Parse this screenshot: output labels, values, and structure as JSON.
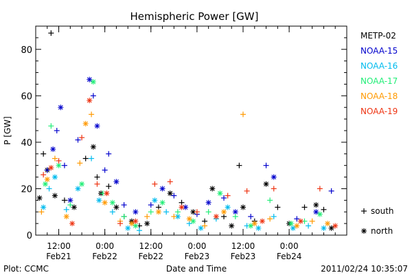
{
  "chart_data": {
    "type": "scatter",
    "title": "Hemispheric Power [GW]",
    "ylabel": "P [GW]",
    "xlabel": "Date and Time",
    "ylim": [
      0,
      90
    ],
    "yticks": [
      0,
      20,
      40,
      60,
      80
    ],
    "xlim": [
      "2011-02-21 06:00",
      "2011-02-24 15:00"
    ],
    "xticks": [
      {
        "time": "2011-02-21 12:00",
        "label1": "12:00",
        "label2": "Feb21"
      },
      {
        "time": "2011-02-22 00:00",
        "label1": "0:00",
        "label2": "Feb22"
      },
      {
        "time": "2011-02-22 12:00",
        "label1": "12:00",
        "label2": "Feb22"
      },
      {
        "time": "2011-02-23 00:00",
        "label1": "0:00",
        "label2": "Feb23"
      },
      {
        "time": "2011-02-23 12:00",
        "label1": "12:00",
        "label2": "Feb23"
      },
      {
        "time": "2011-02-24 00:00",
        "label1": "0:00",
        "label2": "Feb24"
      }
    ],
    "legend_placement": "right",
    "series": [
      {
        "name": "METP-02",
        "color": "#000000",
        "points": [
          {
            "t": "2011-02-21 07:00",
            "y": 16,
            "m": "north"
          },
          {
            "t": "2011-02-21 08:00",
            "y": 35,
            "m": "south"
          },
          {
            "t": "2011-02-21 09:00",
            "y": 28,
            "m": "north"
          },
          {
            "t": "2011-02-21 10:00",
            "y": 87,
            "m": "south"
          },
          {
            "t": "2011-02-21 11:00",
            "y": 17,
            "m": "north"
          },
          {
            "t": "2011-02-21 13:30",
            "y": 15,
            "m": "south"
          },
          {
            "t": "2011-02-21 16:00",
            "y": 12,
            "m": "north"
          },
          {
            "t": "2011-02-21 19:00",
            "y": 33,
            "m": "south"
          },
          {
            "t": "2011-02-21 21:00",
            "y": 38,
            "m": "north"
          },
          {
            "t": "2011-02-21 22:00",
            "y": 25,
            "m": "south"
          },
          {
            "t": "2011-02-21 23:00",
            "y": 18,
            "m": "north"
          },
          {
            "t": "2011-02-22 01:00",
            "y": 21,
            "m": "south"
          },
          {
            "t": "2011-02-22 03:00",
            "y": 12,
            "m": "north"
          },
          {
            "t": "2011-02-22 05:00",
            "y": 8,
            "m": "south"
          },
          {
            "t": "2011-02-22 07:00",
            "y": 6,
            "m": "north"
          },
          {
            "t": "2011-02-22 09:00",
            "y": 4,
            "m": "south"
          },
          {
            "t": "2011-02-22 11:00",
            "y": 5,
            "m": "north"
          },
          {
            "t": "2011-02-22 14:00",
            "y": 12,
            "m": "south"
          },
          {
            "t": "2011-02-22 17:00",
            "y": 18,
            "m": "north"
          },
          {
            "t": "2011-02-22 20:00",
            "y": 14,
            "m": "south"
          },
          {
            "t": "2011-02-22 23:00",
            "y": 10,
            "m": "north"
          },
          {
            "t": "2011-02-23 02:00",
            "y": 6,
            "m": "south"
          },
          {
            "t": "2011-02-23 04:00",
            "y": 20,
            "m": "north"
          },
          {
            "t": "2011-02-23 07:00",
            "y": 8,
            "m": "south"
          },
          {
            "t": "2011-02-23 09:00",
            "y": 4,
            "m": "north"
          },
          {
            "t": "2011-02-23 11:00",
            "y": 30,
            "m": "south"
          },
          {
            "t": "2011-02-23 12:00",
            "y": 12,
            "m": "north"
          },
          {
            "t": "2011-02-23 15:00",
            "y": 6,
            "m": "south"
          },
          {
            "t": "2011-02-23 18:00",
            "y": 22,
            "m": "north"
          },
          {
            "t": "2011-02-23 21:00",
            "y": 12,
            "m": "south"
          },
          {
            "t": "2011-02-24 00:00",
            "y": 5,
            "m": "north"
          },
          {
            "t": "2011-02-24 04:00",
            "y": 12,
            "m": "south"
          },
          {
            "t": "2011-02-24 07:00",
            "y": 13,
            "m": "north"
          },
          {
            "t": "2011-02-24 09:00",
            "y": 11,
            "m": "south"
          },
          {
            "t": "2011-02-24 11:00",
            "y": 3,
            "m": "north"
          }
        ]
      },
      {
        "name": "NOAA-15",
        "color": "#0000cc",
        "points": [
          {
            "t": "2011-02-21 09:00",
            "y": 28,
            "m": "south"
          },
          {
            "t": "2011-02-21 10:30",
            "y": 37,
            "m": "north"
          },
          {
            "t": "2011-02-21 11:30",
            "y": 45,
            "m": "south"
          },
          {
            "t": "2011-02-21 12:30",
            "y": 55,
            "m": "north"
          },
          {
            "t": "2011-02-21 13:30",
            "y": 30,
            "m": "south"
          },
          {
            "t": "2011-02-21 15:00",
            "y": 15,
            "m": "north"
          },
          {
            "t": "2011-02-21 17:00",
            "y": 41,
            "m": "south"
          },
          {
            "t": "2011-02-21 20:00",
            "y": 67,
            "m": "north"
          },
          {
            "t": "2011-02-21 21:00",
            "y": 60,
            "m": "south"
          },
          {
            "t": "2011-02-21 22:00",
            "y": 47,
            "m": "north"
          },
          {
            "t": "2011-02-22 00:00",
            "y": 28,
            "m": "south"
          },
          {
            "t": "2011-02-22 01:00",
            "y": 35,
            "m": "south"
          },
          {
            "t": "2011-02-22 03:00",
            "y": 23,
            "m": "north"
          },
          {
            "t": "2011-02-22 05:00",
            "y": 13,
            "m": "south"
          },
          {
            "t": "2011-02-22 08:00",
            "y": 10,
            "m": "north"
          },
          {
            "t": "2011-02-22 12:00",
            "y": 13,
            "m": "south"
          },
          {
            "t": "2011-02-22 15:00",
            "y": 20,
            "m": "north"
          },
          {
            "t": "2011-02-22 18:00",
            "y": 17,
            "m": "south"
          },
          {
            "t": "2011-02-22 21:00",
            "y": 12,
            "m": "north"
          },
          {
            "t": "2011-02-23 00:00",
            "y": 9,
            "m": "south"
          },
          {
            "t": "2011-02-23 03:00",
            "y": 14,
            "m": "north"
          },
          {
            "t": "2011-02-23 07:00",
            "y": 16,
            "m": "south"
          },
          {
            "t": "2011-02-23 10:00",
            "y": 10,
            "m": "north"
          },
          {
            "t": "2011-02-23 14:00",
            "y": 8,
            "m": "south"
          },
          {
            "t": "2011-02-23 18:00",
            "y": 30,
            "m": "south"
          },
          {
            "t": "2011-02-23 20:00",
            "y": 25,
            "m": "north"
          },
          {
            "t": "2011-02-24 02:00",
            "y": 7,
            "m": "south"
          },
          {
            "t": "2011-02-24 07:00",
            "y": 10,
            "m": "north"
          },
          {
            "t": "2011-02-24 11:00",
            "y": 19,
            "m": "south"
          }
        ]
      },
      {
        "name": "NOAA-16",
        "color": "#00bbee",
        "points": [
          {
            "t": "2011-02-21 08:00",
            "y": 12,
            "m": "north"
          },
          {
            "t": "2011-02-21 09:30",
            "y": 20,
            "m": "south"
          },
          {
            "t": "2011-02-21 11:00",
            "y": 25,
            "m": "north"
          },
          {
            "t": "2011-02-21 14:00",
            "y": 11,
            "m": "south"
          },
          {
            "t": "2011-02-21 17:00",
            "y": 20,
            "m": "north"
          },
          {
            "t": "2011-02-21 20:30",
            "y": 33,
            "m": "south"
          },
          {
            "t": "2011-02-21 22:30",
            "y": 15,
            "m": "north"
          },
          {
            "t": "2011-02-22 02:00",
            "y": 10,
            "m": "south"
          },
          {
            "t": "2011-02-22 06:00",
            "y": 3,
            "m": "north"
          },
          {
            "t": "2011-02-22 09:00",
            "y": 2,
            "m": "south"
          },
          {
            "t": "2011-02-22 13:00",
            "y": 15,
            "m": "north"
          },
          {
            "t": "2011-02-22 16:00",
            "y": 10,
            "m": "south"
          },
          {
            "t": "2011-02-22 19:00",
            "y": 8,
            "m": "north"
          },
          {
            "t": "2011-02-22 22:00",
            "y": 5,
            "m": "south"
          },
          {
            "t": "2011-02-23 01:00",
            "y": 3,
            "m": "north"
          },
          {
            "t": "2011-02-23 05:00",
            "y": 7,
            "m": "south"
          },
          {
            "t": "2011-02-23 08:00",
            "y": 12,
            "m": "north"
          },
          {
            "t": "2011-02-23 13:00",
            "y": 4,
            "m": "south"
          },
          {
            "t": "2011-02-23 16:00",
            "y": 3,
            "m": "north"
          },
          {
            "t": "2011-02-23 20:00",
            "y": 8,
            "m": "south"
          },
          {
            "t": "2011-02-24 01:00",
            "y": 3,
            "m": "north"
          },
          {
            "t": "2011-02-24 05:00",
            "y": 4,
            "m": "south"
          },
          {
            "t": "2011-02-24 09:00",
            "y": 3,
            "m": "north"
          }
        ]
      },
      {
        "name": "NOAA-17",
        "color": "#22ee77",
        "points": [
          {
            "t": "2011-02-21 08:30",
            "y": 22,
            "m": "north"
          },
          {
            "t": "2011-02-21 10:00",
            "y": 47,
            "m": "south"
          },
          {
            "t": "2011-02-21 12:00",
            "y": 30,
            "m": "north"
          },
          {
            "t": "2011-02-21 15:00",
            "y": 13,
            "m": "south"
          },
          {
            "t": "2011-02-21 18:00",
            "y": 22,
            "m": "north"
          },
          {
            "t": "2011-02-21 21:00",
            "y": 66,
            "m": "north"
          },
          {
            "t": "2011-02-21 23:30",
            "y": 18,
            "m": "south"
          },
          {
            "t": "2011-02-22 02:00",
            "y": 14,
            "m": "north"
          },
          {
            "t": "2011-02-22 05:00",
            "y": 8,
            "m": "south"
          },
          {
            "t": "2011-02-22 08:00",
            "y": 4,
            "m": "north"
          },
          {
            "t": "2011-02-22 12:00",
            "y": 10,
            "m": "south"
          },
          {
            "t": "2011-02-22 15:00",
            "y": 14,
            "m": "north"
          },
          {
            "t": "2011-02-22 19:00",
            "y": 10,
            "m": "south"
          },
          {
            "t": "2011-02-22 23:00",
            "y": 6,
            "m": "north"
          },
          {
            "t": "2011-02-23 03:00",
            "y": 10,
            "m": "south"
          },
          {
            "t": "2011-02-23 06:00",
            "y": 18,
            "m": "north"
          },
          {
            "t": "2011-02-23 10:00",
            "y": 8,
            "m": "south"
          },
          {
            "t": "2011-02-23 14:00",
            "y": 4,
            "m": "north"
          },
          {
            "t": "2011-02-23 19:00",
            "y": 15,
            "m": "south"
          },
          {
            "t": "2011-02-24 00:30",
            "y": 5,
            "m": "north"
          },
          {
            "t": "2011-02-24 04:00",
            "y": 6,
            "m": "south"
          },
          {
            "t": "2011-02-24 08:00",
            "y": 9,
            "m": "north"
          }
        ]
      },
      {
        "name": "NOAA-18",
        "color": "#ff9900",
        "points": [
          {
            "t": "2011-02-21 07:30",
            "y": 10,
            "m": "south"
          },
          {
            "t": "2011-02-21 09:00",
            "y": 24,
            "m": "north"
          },
          {
            "t": "2011-02-21 11:00",
            "y": 33,
            "m": "south"
          },
          {
            "t": "2011-02-21 14:00",
            "y": 8,
            "m": "north"
          },
          {
            "t": "2011-02-21 17:30",
            "y": 31,
            "m": "south"
          },
          {
            "t": "2011-02-21 19:00",
            "y": 48,
            "m": "north"
          },
          {
            "t": "2011-02-21 20:30",
            "y": 52,
            "m": "south"
          },
          {
            "t": "2011-02-22 00:00",
            "y": 14,
            "m": "north"
          },
          {
            "t": "2011-02-22 04:00",
            "y": 6,
            "m": "south"
          },
          {
            "t": "2011-02-22 07:00",
            "y": 5,
            "m": "north"
          },
          {
            "t": "2011-02-22 11:00",
            "y": 8,
            "m": "south"
          },
          {
            "t": "2011-02-22 14:00",
            "y": 10,
            "m": "north"
          },
          {
            "t": "2011-02-22 18:00",
            "y": 8,
            "m": "south"
          },
          {
            "t": "2011-02-22 22:00",
            "y": 7,
            "m": "north"
          },
          {
            "t": "2011-02-23 02:00",
            "y": 4,
            "m": "south"
          },
          {
            "t": "2011-02-23 07:00",
            "y": 10,
            "m": "north"
          },
          {
            "t": "2011-02-23 12:00",
            "y": 52,
            "m": "south"
          },
          {
            "t": "2011-02-23 15:00",
            "y": 5,
            "m": "north"
          },
          {
            "t": "2011-02-23 19:00",
            "y": 7,
            "m": "south"
          },
          {
            "t": "2011-02-24 02:00",
            "y": 4,
            "m": "north"
          },
          {
            "t": "2011-02-24 06:00",
            "y": 6,
            "m": "south"
          },
          {
            "t": "2011-02-24 10:00",
            "y": 5,
            "m": "north"
          }
        ]
      },
      {
        "name": "NOAA-19",
        "color": "#ee3311",
        "points": [
          {
            "t": "2011-02-21 08:00",
            "y": 26,
            "m": "south"
          },
          {
            "t": "2011-02-21 10:00",
            "y": 29,
            "m": "north"
          },
          {
            "t": "2011-02-21 12:00",
            "y": 32,
            "m": "south"
          },
          {
            "t": "2011-02-21 15:30",
            "y": 5,
            "m": "north"
          },
          {
            "t": "2011-02-21 18:00",
            "y": 42,
            "m": "south"
          },
          {
            "t": "2011-02-21 20:00",
            "y": 58,
            "m": "north"
          },
          {
            "t": "2011-02-21 22:00",
            "y": 22,
            "m": "south"
          },
          {
            "t": "2011-02-22 00:30",
            "y": 18,
            "m": "north"
          },
          {
            "t": "2011-02-22 04:00",
            "y": 5,
            "m": "south"
          },
          {
            "t": "2011-02-22 08:00",
            "y": 6,
            "m": "north"
          },
          {
            "t": "2011-02-22 13:00",
            "y": 22,
            "m": "south"
          },
          {
            "t": "2011-02-22 17:00",
            "y": 23,
            "m": "south"
          },
          {
            "t": "2011-02-22 20:00",
            "y": 12,
            "m": "north"
          },
          {
            "t": "2011-02-23 00:00",
            "y": 10,
            "m": "south"
          },
          {
            "t": "2011-02-23 05:00",
            "y": 8,
            "m": "north"
          },
          {
            "t": "2011-02-23 08:00",
            "y": 17,
            "m": "south"
          },
          {
            "t": "2011-02-23 13:00",
            "y": 19,
            "m": "south"
          },
          {
            "t": "2011-02-23 17:00",
            "y": 6,
            "m": "north"
          },
          {
            "t": "2011-02-23 20:00",
            "y": 20,
            "m": "south"
          },
          {
            "t": "2011-02-24 03:00",
            "y": 6,
            "m": "north"
          },
          {
            "t": "2011-02-24 08:00",
            "y": 20,
            "m": "south"
          },
          {
            "t": "2011-02-24 12:00",
            "y": 4,
            "m": "north"
          }
        ]
      }
    ],
    "marker_legend": [
      {
        "symbol": "+",
        "label": "south"
      },
      {
        "symbol": "*",
        "label": "north"
      }
    ]
  },
  "footer": {
    "plot_credit": "Plot: CCMC",
    "timestamp": "2011/02/24 10:35:07"
  }
}
